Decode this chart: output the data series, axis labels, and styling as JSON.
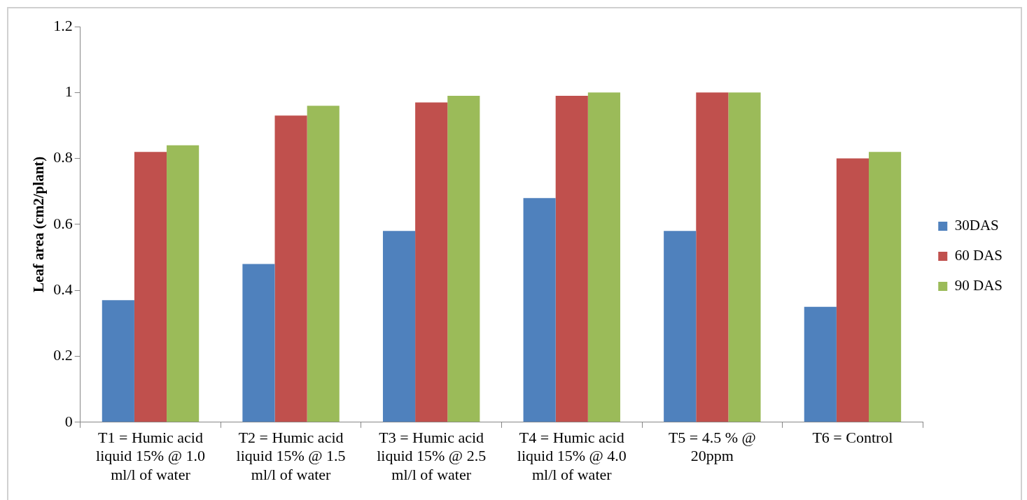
{
  "chart_data": {
    "type": "bar",
    "ylabel": "Leaf area (cm2/plant)",
    "categories": [
      "T1 = Humic acid liquid 15% @ 1.0 ml/l of water",
      "T2 = Humic acid liquid 15% @ 1.5 ml/l of water",
      "T3 = Humic acid liquid 15% @ 2.5 ml/l of water",
      "T4 = Humic acid liquid 15% @ 4.0 ml/l of water",
      "T5 = 4.5 % @ 20ppm",
      "T6 = Control"
    ],
    "series": [
      {
        "name": "30DAS",
        "color": "#4f81bd",
        "values": [
          0.37,
          0.48,
          0.58,
          0.68,
          0.58,
          0.35
        ]
      },
      {
        "name": "60 DAS",
        "color": "#c0504d",
        "values": [
          0.82,
          0.93,
          0.97,
          0.99,
          1.0,
          0.8
        ]
      },
      {
        "name": "90 DAS",
        "color": "#9bbb59",
        "values": [
          0.84,
          0.96,
          0.99,
          1.0,
          1.0,
          0.82
        ]
      }
    ],
    "ylim": [
      0,
      1.2
    ],
    "yticks": [
      0,
      0.2,
      0.4,
      0.6,
      0.8,
      1,
      1.2
    ],
    "grid": false,
    "legend": "right"
  }
}
